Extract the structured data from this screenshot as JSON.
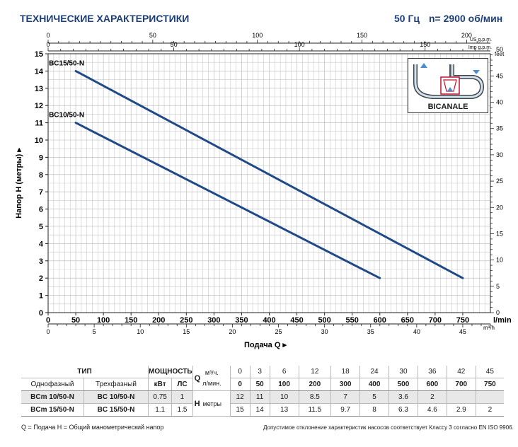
{
  "header": {
    "title": "ТЕХНИЧЕСКИЕ ХАРАКТЕРИСТИКИ",
    "freq": "50 Гц",
    "speed": "n= 2900 об/мин"
  },
  "inset": {
    "label": "BICANALE"
  },
  "chart_data": {
    "type": "line",
    "ylabel": "Напор H  (метры)",
    "xlabel": "Подача Q",
    "x_unit": "l/min",
    "xlim": [
      0,
      800
    ],
    "ylim": [
      0,
      15
    ],
    "x_ticks": [
      0,
      50,
      100,
      150,
      200,
      250,
      300,
      350,
      400,
      450,
      500,
      550,
      600,
      650,
      700,
      750
    ],
    "y_ticks": [
      0,
      1,
      2,
      3,
      4,
      5,
      6,
      7,
      8,
      9,
      10,
      11,
      12,
      13,
      14,
      15
    ],
    "right_axis": {
      "unit": "feet",
      "ticks": [
        0,
        5,
        10,
        15,
        20,
        25,
        30,
        35,
        40,
        45,
        50
      ]
    },
    "top_axis_us": {
      "unit": "US g.p.m.",
      "ticks": [
        0,
        50,
        100,
        150,
        200
      ]
    },
    "top_axis_imp": {
      "unit": "Imp g.p.m.",
      "ticks": [
        0,
        50,
        100,
        150
      ]
    },
    "bottom_axis_m3h": {
      "unit": "m³/h",
      "ticks": [
        0,
        5,
        10,
        15,
        20,
        25,
        30,
        35,
        40,
        45,
        50
      ]
    },
    "grid": true,
    "series": [
      {
        "name": "BC15/50-N",
        "x": [
          50,
          750
        ],
        "y": [
          14,
          2
        ]
      },
      {
        "name": "BC10/50-N",
        "x": [
          50,
          600
        ],
        "y": [
          11,
          2
        ]
      }
    ]
  },
  "table": {
    "type_header": "ТИП",
    "power_header": "МОЩНОСТЬ",
    "single_phase": "Однофазный",
    "three_phase": "Трехфазный",
    "kw": "кВт",
    "hp": "ЛС",
    "q_label": "Q",
    "q_unit_m3h": "м³/ч.",
    "q_unit_lmin": "л/мин.",
    "h_label": "H",
    "h_unit": "метры",
    "q_m3h": [
      "0",
      "3",
      "6",
      "12",
      "18",
      "24",
      "30",
      "36",
      "42",
      "45"
    ],
    "q_lmin": [
      "0",
      "50",
      "100",
      "200",
      "300",
      "400",
      "500",
      "600",
      "700",
      "750"
    ],
    "rows": [
      {
        "single": "BCm 10/50-N",
        "three": "BC 10/50-N",
        "kw": "0.75",
        "hp": "1",
        "h": [
          "12",
          "11",
          "10",
          "8.5",
          "7",
          "5",
          "3.6",
          "2",
          "",
          ""
        ]
      },
      {
        "single": "BCm 15/50-N",
        "three": "BC 15/50-N",
        "kw": "1.1",
        "hp": "1.5",
        "h": [
          "15",
          "14",
          "13",
          "11.5",
          "9.7",
          "8",
          "6.3",
          "4.6",
          "2.9",
          "2"
        ]
      }
    ]
  },
  "footer": {
    "legend": "Q = Подача  H = Общий манометрический напор",
    "tolerance": "Допустимое отклонение характеристик насосов соответствует Классу 3 согласно EN ISO 9906."
  },
  "colors": {
    "curve": "#1f4a87",
    "header": "#1c3f7a",
    "grid": "#c9c9c9"
  }
}
